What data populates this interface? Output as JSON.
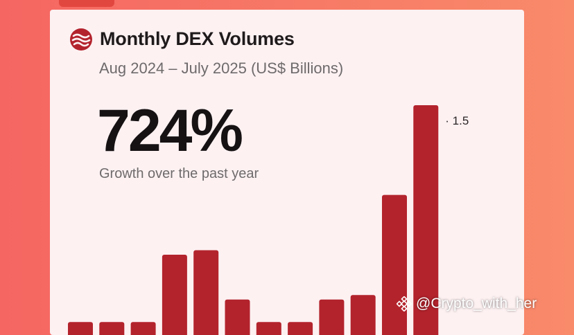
{
  "header": {
    "title": "Monthly DEX Volumes",
    "subtitle": "Aug 2024 – July 2025 (US$ Billions)"
  },
  "highlight": {
    "value": "724%",
    "caption": "Growth over the past year"
  },
  "watermark": {
    "text": "@Crypto_with_her",
    "icon": "binance-diamond-icon"
  },
  "logo": {
    "icon": "wave-logo-icon"
  },
  "colors": {
    "bar": "#b3232c",
    "card": "#fdf1f2",
    "background": "#f56662"
  },
  "chart_data": {
    "type": "bar",
    "categories": [
      "",
      "",
      "",
      "",
      "",
      "",
      "",
      "",
      "",
      "",
      "",
      ""
    ],
    "values": [
      0.05,
      0.05,
      0.05,
      0.5,
      0.53,
      0.2,
      0.05,
      0.05,
      0.2,
      0.23,
      0.9,
      1.5
    ],
    "data_labels": [
      {
        "index": 11,
        "text": "· 1.5"
      }
    ],
    "title": "Monthly DEX Volumes",
    "ylim": [
      0,
      1.5
    ],
    "grid": false,
    "legend": "none"
  }
}
